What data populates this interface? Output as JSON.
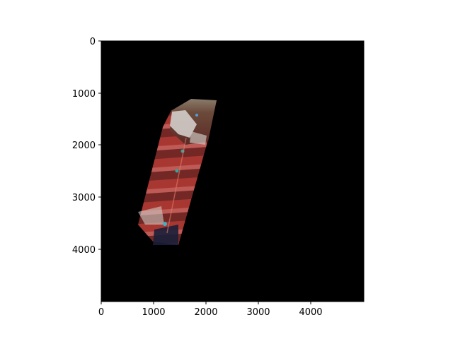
{
  "figure": {
    "x_ticks": [
      "0",
      "1000",
      "2000",
      "3000",
      "4000"
    ],
    "y_ticks": [
      "0",
      "1000",
      "2000",
      "3000",
      "4000"
    ],
    "background_color": "#000000",
    "frame_color": "#000000",
    "image_content": "false-color satellite swath mosaic"
  }
}
